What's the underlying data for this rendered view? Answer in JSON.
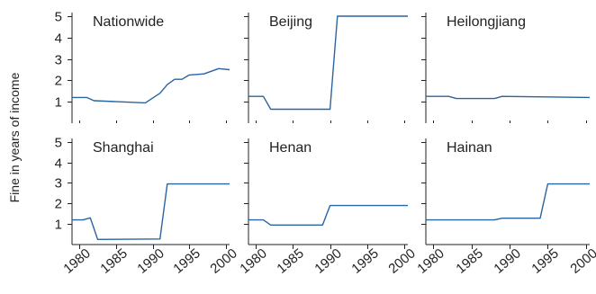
{
  "colors": {
    "line": "#2a64a0",
    "axis": "#222222",
    "text": "#222222"
  },
  "chart_data": {
    "type": "line",
    "ylabel": "Fine in years of income",
    "x_ticks": [
      1980,
      1985,
      1990,
      1995,
      2000
    ],
    "y_ticks": [
      1,
      2,
      3,
      4,
      5
    ],
    "xlim": [
      1979,
      2000.5
    ],
    "ylim": [
      0,
      5.25
    ],
    "layout": "2x3 grid, shared axes",
    "panels": [
      {
        "name": "Nationwide",
        "x": [
          1979,
          1981,
          1982,
          1989,
          1991,
          1992,
          1993,
          1994,
          1995,
          1997,
          1999,
          2000.5
        ],
        "y": [
          1.2,
          1.2,
          1.05,
          0.95,
          1.4,
          1.8,
          2.05,
          2.05,
          2.25,
          2.3,
          2.55,
          2.5
        ]
      },
      {
        "name": "Beijing",
        "x": [
          1979,
          1981,
          1982,
          1990,
          1991,
          2000.5
        ],
        "y": [
          1.25,
          1.25,
          0.65,
          0.65,
          5.0,
          5.0
        ]
      },
      {
        "name": "Heilongjiang",
        "x": [
          1979,
          1982,
          1983,
          1988,
          1989,
          2000.5
        ],
        "y": [
          1.25,
          1.25,
          1.15,
          1.15,
          1.25,
          1.2
        ]
      },
      {
        "name": "Shanghai",
        "x": [
          1979,
          1980.5,
          1981.5,
          1982.5,
          1991,
          1992,
          2000.5
        ],
        "y": [
          1.2,
          1.2,
          1.3,
          0.25,
          0.27,
          2.95,
          2.95
        ]
      },
      {
        "name": "Henan",
        "x": [
          1979,
          1981,
          1982,
          1989,
          1990,
          2000.5
        ],
        "y": [
          1.2,
          1.2,
          0.95,
          0.95,
          1.9,
          1.9
        ]
      },
      {
        "name": "Hainan",
        "x": [
          1979,
          1988,
          1989,
          1994,
          1995,
          2000.5
        ],
        "y": [
          1.2,
          1.2,
          1.28,
          1.28,
          2.95,
          2.95
        ]
      }
    ]
  }
}
